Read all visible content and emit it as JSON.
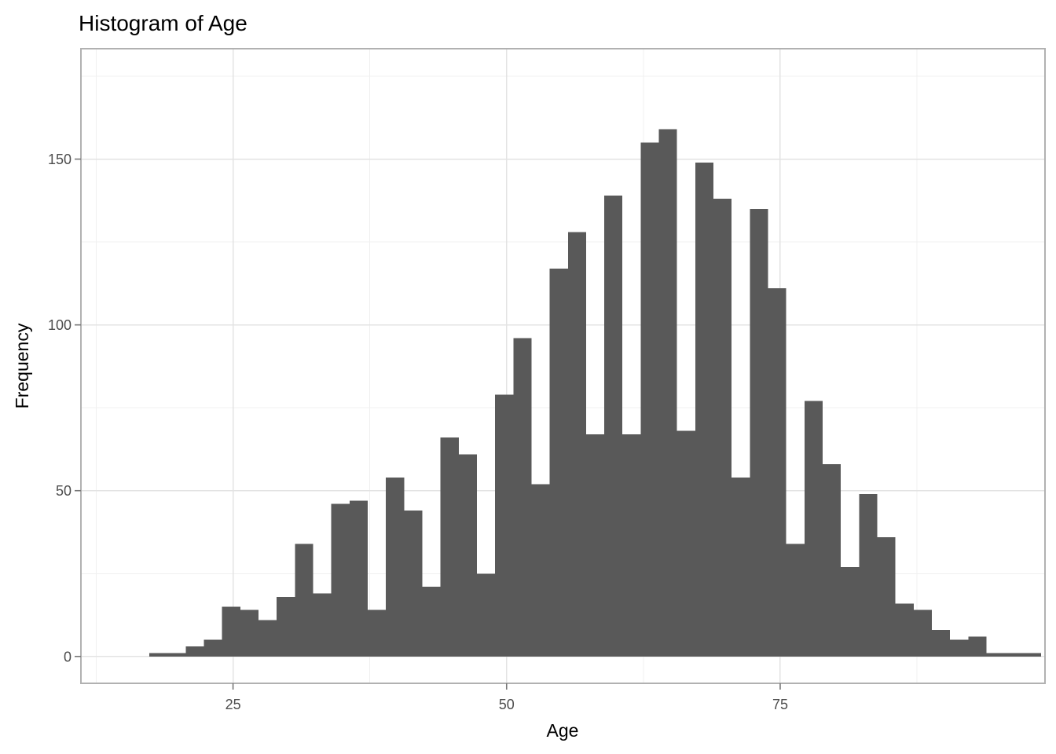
{
  "title": "Histogram of Age",
  "chart_data": {
    "type": "bar",
    "subtype": "histogram",
    "title": "Histogram of Age",
    "xlabel": "Age",
    "ylabel": "Frequency",
    "legend": "none",
    "grid": "on",
    "background_color": "#ffffff",
    "bar_color": "#595959",
    "grid_major_color": "#e3e3e3",
    "grid_minor_color": "#f0f0f0",
    "panel_border_color": "#b1b1b1",
    "tick_color": "#777777",
    "tick_label_color": "#4d4d4d",
    "x_ticks": [
      25,
      50,
      75
    ],
    "x_minor_ticks": [
      12.5,
      37.5,
      62.5,
      87.5
    ],
    "y_ticks": [
      0,
      50,
      100,
      150
    ],
    "y_minor_ticks": [
      25,
      75,
      125,
      175
    ],
    "x_domain": [
      11.1,
      99.2
    ],
    "y_domain": [
      -8.1,
      183.3
    ],
    "bin_start": 17.35,
    "bin_width": 1.663,
    "frequencies": [
      1,
      1,
      3,
      5,
      15,
      14,
      11,
      18,
      34,
      19,
      46,
      47,
      14,
      54,
      44,
      21,
      66,
      61,
      25,
      79,
      96,
      52,
      117,
      128,
      67,
      139,
      67,
      155,
      159,
      68,
      149,
      138,
      54,
      135,
      111,
      34,
      77,
      58,
      27,
      49,
      36,
      16,
      14,
      8,
      5,
      6,
      1,
      1,
      1
    ]
  }
}
